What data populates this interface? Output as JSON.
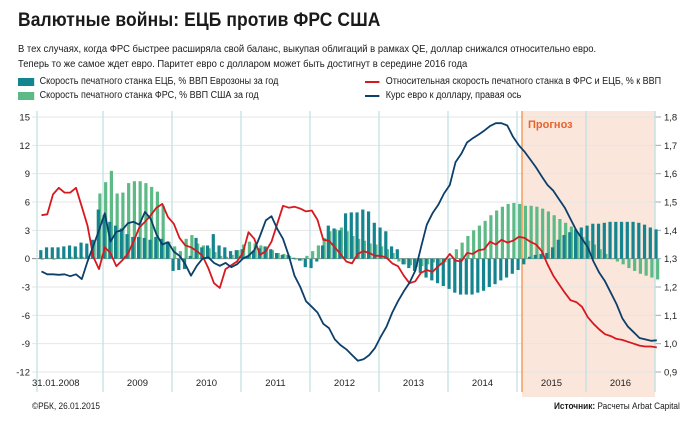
{
  "header": {
    "title": "Валютные войны: ЕЦБ против ФРС США",
    "subtitle_line1": "В тех случаях, когда ФРС быстрее расширяла свой баланс, выкупая облигаций в рамках QE, доллар снижался относительно евро.",
    "subtitle_line2": "Теперь то же самое ждет евро. Паритет евро с долларом может быть достигнут в середине 2016 года"
  },
  "footer": {
    "copyright": "©РБК, 26.01.2015",
    "source_label": "Источник:",
    "source_value": "Расчеты Arbat Capital"
  },
  "colors": {
    "ecb_bars": "#14858f",
    "fed_bars": "#5dba86",
    "relative_line": "#d7191f",
    "eurusd_line": "#0d3f6b",
    "forecast_bg": "#fbe6dc",
    "forecast_line": "#f08a3c",
    "forecast_text": "#e8622c",
    "grid": "#e6e6e6",
    "year_divider": "#bfe0e2"
  },
  "chart_data": {
    "type": "bar",
    "title": "Валютные войны: ЕЦБ против ФРС США",
    "xlabel": "",
    "ylabel_left": "% ВВП",
    "ylabel_right": "EUR/USD",
    "ylim": [
      -12,
      15
    ],
    "ylim_right": [
      0.9,
      1.8
    ],
    "yticks": [
      "15",
      "12",
      "9",
      "6",
      "3",
      "0",
      "-3",
      "-6",
      "-9",
      "-12"
    ],
    "yticks_right": [
      "1,8",
      "1,7",
      "1,6",
      "1,5",
      "1,4",
      "1,3",
      "1,2",
      "1,1",
      "1,0",
      "0,9"
    ],
    "x_labels": [
      "31.01.2008",
      "2009",
      "2010",
      "2011",
      "2012",
      "2013",
      "2014",
      "2015",
      "2016"
    ],
    "forecast_label": "Прогноз",
    "forecast_start": "2015-01",
    "grid": true,
    "legend_placement": "top",
    "legend": [
      {
        "name": "Скорость печатного станка ЕЦБ, % ВВП Еврозоны за год",
        "kind": "bar"
      },
      {
        "name": "Скорость печатного станка ФРС, % ВВП США за год",
        "kind": "bar"
      },
      {
        "name": "Относительная скорость печатного станка в ФРС и ЕЦБ, % к ВВП",
        "kind": "line"
      },
      {
        "name": "Курс евро к доллару, правая ось",
        "kind": "line"
      }
    ],
    "x_start": "2008-01",
    "x_step": "month",
    "series": [
      {
        "name": "Скорость печатного станка ЕЦБ, % ВВП Еврозоны за год",
        "axis": "left",
        "type": "bar",
        "values": [
          0.9,
          1.2,
          1.2,
          1.2,
          1.3,
          1.4,
          1.3,
          1.7,
          1.6,
          2.0,
          5.2,
          4.6,
          3.9,
          3.5,
          3.2,
          2.6,
          2.3,
          2.3,
          2.2,
          2.0,
          2.3,
          2.1,
          1.8,
          -1.3,
          -1.2,
          -1.1,
          0.3,
          2.2,
          1.2,
          1.4,
          2.6,
          1.4,
          1.2,
          0.8,
          0.9,
          1.0,
          0.3,
          0.8,
          1.1,
          1.3,
          1.0,
          0.6,
          0.4,
          0.4,
          0.1,
          -0.2,
          -0.9,
          -1.0,
          -0.3,
          1.4,
          3.5,
          3.2,
          3.0,
          4.8,
          4.9,
          4.9,
          5.2,
          5.0,
          3.8,
          3.3,
          2.9,
          1.3,
          1.0,
          -0.6,
          -1.0,
          -1.3,
          -1.5,
          -2.0,
          -2.3,
          -2.6,
          -2.9,
          -3.2,
          -3.6,
          -3.8,
          -3.8,
          -3.8,
          -3.6,
          -3.4,
          -3.0,
          -2.7,
          -2.3,
          -2.0,
          -1.6,
          -1.2,
          -0.6,
          0.2,
          0.4,
          0.5,
          0.6,
          1.2,
          2.0,
          2.5,
          2.8,
          3.1,
          3.3,
          3.5,
          3.7,
          3.7,
          3.8,
          3.9,
          3.9,
          3.9,
          3.9,
          3.9,
          3.8,
          3.6,
          3.3,
          3.1
        ]
      },
      {
        "name": "Скорость печатного станка ФРС, % ВВП США за год",
        "axis": "left",
        "type": "bar",
        "values": [
          -0.1,
          0.1,
          -0.1,
          0.1,
          0.1,
          0.2,
          0.2,
          0.2,
          0.3,
          1.7,
          6.9,
          8.1,
          9.3,
          6.9,
          7.0,
          8.0,
          8.2,
          8.2,
          8.0,
          7.6,
          7.1,
          5.6,
          1.8,
          1.3,
          0.8,
          2.1,
          2.5,
          1.6,
          1.4,
          1.1,
          0.7,
          0.3,
          0.2,
          0.4,
          0.9,
          1.5,
          1.8,
          1.6,
          1.4,
          1.2,
          0.9,
          0.6,
          0.5,
          0.3,
          -0.1,
          -0.2,
          0.3,
          0.8,
          1.4,
          2.2,
          2.9,
          3.1,
          3.3,
          2.9,
          2.4,
          2.1,
          1.9,
          1.6,
          1.5,
          1.3,
          1.0,
          0.6,
          -0.3,
          -0.6,
          -0.7,
          -0.9,
          -0.8,
          -0.6,
          -0.4,
          -0.6,
          -0.4,
          0.1,
          1.0,
          1.7,
          2.4,
          3.0,
          3.5,
          4.0,
          4.6,
          5.1,
          5.5,
          5.8,
          5.9,
          5.8,
          5.6,
          5.6,
          5.5,
          5.3,
          5.0,
          4.6,
          4.2,
          3.8,
          3.4,
          2.8,
          2.3,
          1.9,
          1.5,
          1.0,
          0.5,
          0.0,
          -0.3,
          -0.6,
          -1.0,
          -1.3,
          -1.6,
          -1.8,
          -2.0,
          -2.2
        ]
      },
      {
        "name": "Относительная скорость печатного станка в ФРС и ЕЦБ, % к ВВП",
        "axis": "left",
        "type": "line",
        "values": [
          4.6,
          4.7,
          6.8,
          7.5,
          7.0,
          7.0,
          7.5,
          5.5,
          3.5,
          0.2,
          -1.1,
          1.2,
          0.6,
          -0.8,
          -0.2,
          0.5,
          1.8,
          3.3,
          3.9,
          4.6,
          5.4,
          5.8,
          4.4,
          3.7,
          2.2,
          1.4,
          1.2,
          0.8,
          0.3,
          -1.0,
          -2.6,
          -3.1,
          -1.1,
          -0.7,
          -0.3,
          0.6,
          2.8,
          2.1,
          0.4,
          0.8,
          1.8,
          3.7,
          5.6,
          5.4,
          5.5,
          5.3,
          5.0,
          5.1,
          4.1,
          2.0,
          1.9,
          1.2,
          0.5,
          -0.3,
          -0.5,
          0.5,
          0.8,
          0.6,
          0.3,
          0.3,
          0.1,
          -0.5,
          -0.8,
          -1.8,
          -2.6,
          -2.4,
          -1.5,
          -1.2,
          -1.4,
          -0.8,
          -0.3,
          0.5,
          -0.2,
          -0.3,
          0.6,
          0.5,
          0.9,
          1.0,
          1.8,
          1.5,
          2.0,
          1.7,
          1.9,
          2.3,
          2.2,
          1.8,
          1.5,
          0.8,
          -0.6,
          -1.8,
          -2.7,
          -3.6,
          -4.4,
          -4.6,
          -5.1,
          -6.2,
          -6.9,
          -7.5,
          -8.0,
          -8.2,
          -8.5,
          -8.6,
          -8.8,
          -9.0,
          -9.2,
          -9.3,
          -9.3,
          -9.4
        ]
      },
      {
        "name": "Курс евро к доллару, правая ось",
        "axis": "right",
        "type": "line",
        "values": [
          1.255,
          1.245,
          1.245,
          1.243,
          1.245,
          1.238,
          1.245,
          1.228,
          1.29,
          1.345,
          1.4,
          1.46,
          1.36,
          1.395,
          1.4,
          1.425,
          1.43,
          1.42,
          1.465,
          1.44,
          1.385,
          1.35,
          1.358,
          1.325,
          1.31,
          1.28,
          1.24,
          1.275,
          1.3,
          1.305,
          1.285,
          1.275,
          1.285,
          1.27,
          1.28,
          1.3,
          1.31,
          1.33,
          1.38,
          1.435,
          1.45,
          1.405,
          1.37,
          1.31,
          1.24,
          1.2,
          1.15,
          1.13,
          1.11,
          1.07,
          1.055,
          1.015,
          0.995,
          0.98,
          0.96,
          0.94,
          0.945,
          0.96,
          0.985,
          1.025,
          1.06,
          1.11,
          1.15,
          1.185,
          1.215,
          1.258,
          1.34,
          1.42,
          1.46,
          1.49,
          1.53,
          1.56,
          1.64,
          1.67,
          1.71,
          1.725,
          1.738,
          1.752,
          1.768,
          1.778,
          1.778,
          1.77,
          1.73,
          1.7,
          1.678,
          1.65,
          1.622,
          1.59,
          1.56,
          1.54,
          1.51,
          1.48,
          1.44,
          1.4,
          1.37,
          1.34,
          1.29,
          1.25,
          1.22,
          1.18,
          1.14,
          1.09,
          1.06,
          1.04,
          1.02,
          1.015,
          1.01,
          1.012
        ]
      }
    ]
  }
}
